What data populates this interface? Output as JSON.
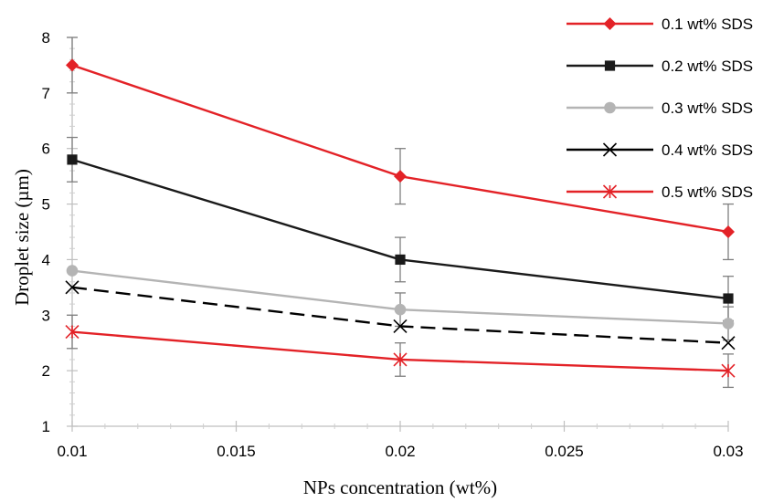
{
  "chart_data": {
    "type": "line",
    "title": "",
    "xlabel": "NPs concentration (wt%)",
    "ylabel": "Droplet size (µm)",
    "xlim": [
      0.01,
      0.03
    ],
    "ylim": [
      1,
      8
    ],
    "x_ticks": [
      "0.01",
      "0.015",
      "0.02",
      "0.025",
      "0.03"
    ],
    "y_ticks": [
      "1",
      "2",
      "3",
      "4",
      "5",
      "6",
      "7",
      "8"
    ],
    "grid": false,
    "legend_position": "top-right",
    "x": [
      0.01,
      0.02,
      0.03
    ],
    "series": [
      {
        "name": "0.1 wt% SDS",
        "values": [
          7.5,
          5.5,
          4.5
        ],
        "errors": [
          0.5,
          0.5,
          0.5
        ],
        "color": "#e32227",
        "marker": "diamond",
        "dash": "solid"
      },
      {
        "name": "0.2 wt% SDS",
        "values": [
          5.8,
          4.0,
          3.3
        ],
        "errors": [
          0.4,
          0.4,
          0.4
        ],
        "color": "#1a1a1a",
        "marker": "square",
        "dash": "solid"
      },
      {
        "name": "0.3 wt% SDS",
        "values": [
          3.8,
          3.1,
          2.85
        ],
        "errors": [
          0,
          0.3,
          0.3
        ],
        "color": "#b4b4b4",
        "marker": "circle",
        "dash": "solid"
      },
      {
        "name": "0.4 wt% SDS",
        "values": [
          3.5,
          2.8,
          2.5
        ],
        "errors": [
          0,
          0,
          0
        ],
        "color": "#000000",
        "marker": "x",
        "dash": "dashed"
      },
      {
        "name": "0.5 wt% SDS",
        "values": [
          2.7,
          2.2,
          2.0
        ],
        "errors": [
          0.3,
          0.3,
          0.3
        ],
        "color": "#e32227",
        "marker": "asterisk",
        "dash": "solid"
      }
    ]
  }
}
